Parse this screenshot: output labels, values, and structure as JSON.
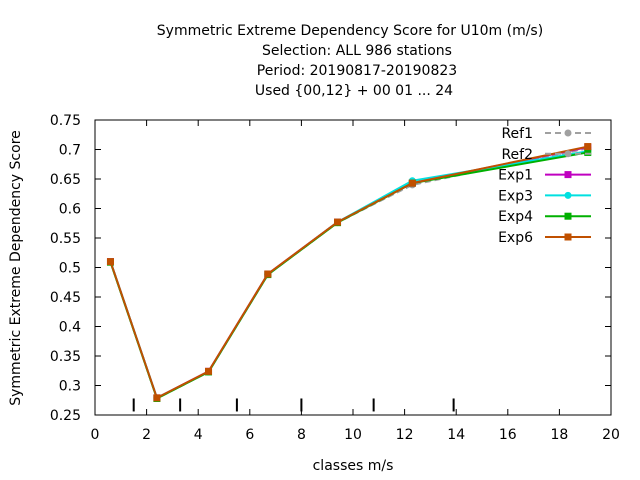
{
  "chart_data": {
    "type": "line",
    "title_lines": [
      "Symmetric Extreme Dependency Score  for U10m (m/s)",
      "Selection: ALL    986 stations",
      "Period: 20190817-20190823",
      "Used {00,12} + 00 01 ... 24"
    ],
    "xlabel": "classes m/s",
    "ylabel": "Symmetric Extreme Dependency Score",
    "xlim": [
      0,
      20
    ],
    "ylim": [
      0.25,
      0.75
    ],
    "xticks": [
      0,
      2,
      4,
      6,
      8,
      10,
      12,
      14,
      16,
      18,
      20
    ],
    "xtick_labels": [
      "0",
      "2",
      "4",
      "6",
      "8",
      "10",
      "12",
      "14",
      "16",
      "18",
      "20"
    ],
    "yticks": [
      0.25,
      0.3,
      0.35,
      0.4,
      0.45,
      0.5,
      0.55,
      0.6,
      0.65,
      0.7,
      0.75
    ],
    "ytick_labels": [
      "0.25",
      "0.3",
      "0.35",
      "0.4",
      "0.45",
      "0.5",
      "0.55",
      "0.6",
      "0.65",
      "0.7",
      "0.75"
    ],
    "class_bounds": [
      1.5,
      3.3,
      5.5,
      8,
      10.8,
      13.9
    ],
    "x": [
      0.6,
      2.4,
      4.4,
      6.7,
      9.4,
      12.3,
      19.1
    ],
    "series": [
      {
        "name": "Ref1",
        "color": "#a0a0a0",
        "dashed": true,
        "marker": "circle",
        "values": [
          0.51,
          0.279,
          0.323,
          0.488,
          0.576,
          0.641,
          0.703
        ]
      },
      {
        "name": "Ref2",
        "color": "#a0a0a0",
        "dashed": true,
        "marker": "circle",
        "values": [
          0.51,
          0.278,
          0.323,
          0.488,
          0.577,
          0.64,
          0.702
        ]
      },
      {
        "name": "Exp1",
        "color": "#c000c0",
        "dashed": false,
        "marker": "square",
        "values": [
          0.51,
          0.279,
          0.324,
          0.489,
          0.577,
          0.643,
          0.704
        ]
      },
      {
        "name": "Exp3",
        "color": "#00e0e0",
        "dashed": false,
        "marker": "circle",
        "values": [
          0.51,
          0.279,
          0.323,
          0.488,
          0.577,
          0.647,
          0.697
        ]
      },
      {
        "name": "Exp4",
        "color": "#00b000",
        "dashed": false,
        "marker": "square",
        "values": [
          0.509,
          0.278,
          0.323,
          0.488,
          0.576,
          0.643,
          0.695
        ]
      },
      {
        "name": "Exp6",
        "color": "#c05000",
        "dashed": false,
        "marker": "square",
        "values": [
          0.51,
          0.279,
          0.324,
          0.489,
          0.577,
          0.643,
          0.705
        ]
      }
    ],
    "legend_position": "top-right",
    "grid": false
  }
}
